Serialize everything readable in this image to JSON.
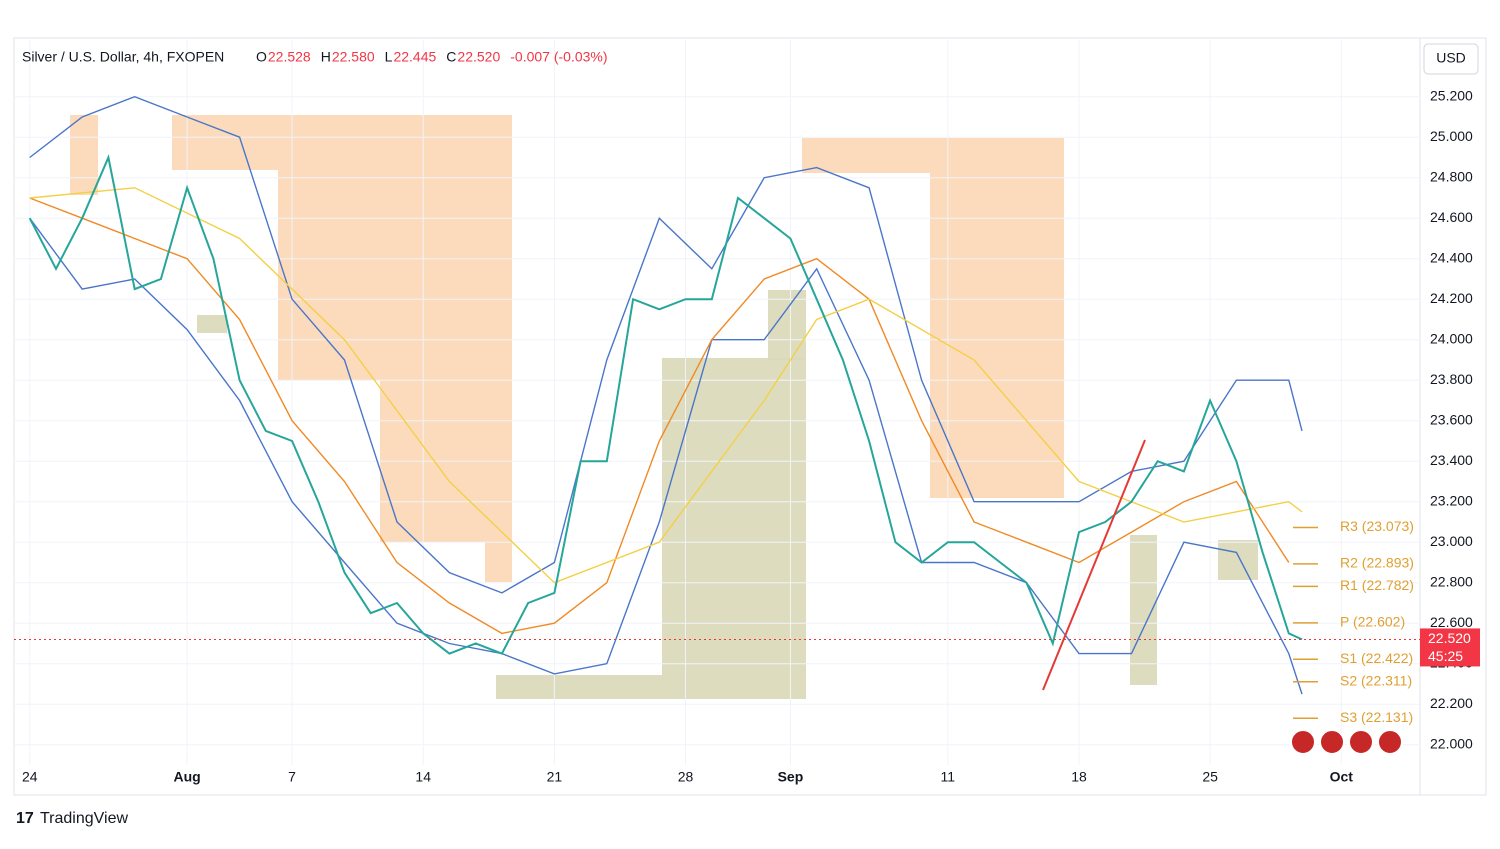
{
  "chart_data": {
    "type": "line",
    "title": "Silver / U.S. Dollar, 4h, FXOPEN",
    "ohlc": [
      {
        "label": "O",
        "value": "22.528"
      },
      {
        "label": "H",
        "value": "22.580"
      },
      {
        "label": "L",
        "value": "22.445"
      },
      {
        "label": "C",
        "value": "22.520"
      }
    ],
    "change": "-0.007 (-0.03%)",
    "currency": "USD",
    "last_price": {
      "value": 22.52,
      "label": "22.520"
    },
    "countdown": "45:25",
    "brand": "TradingView",
    "ylim": [
      21.9,
      25.48
    ],
    "yticks": [
      {
        "value": 22.0,
        "label": "22.000"
      },
      {
        "value": 22.2,
        "label": "22.200"
      },
      {
        "value": 22.4,
        "label": "22.400"
      },
      {
        "value": 22.6,
        "label": "22.600"
      },
      {
        "value": 22.8,
        "label": "22.800"
      },
      {
        "value": 23.0,
        "label": "23.000"
      },
      {
        "value": 23.2,
        "label": "23.200"
      },
      {
        "value": 23.4,
        "label": "23.400"
      },
      {
        "value": 23.6,
        "label": "23.600"
      },
      {
        "value": 23.8,
        "label": "23.800"
      },
      {
        "value": 24.0,
        "label": "24.000"
      },
      {
        "value": 24.2,
        "label": "24.200"
      },
      {
        "value": 24.4,
        "label": "24.400"
      },
      {
        "value": 24.6,
        "label": "24.600"
      },
      {
        "value": 24.8,
        "label": "24.800"
      },
      {
        "value": 25.0,
        "label": "25.000"
      },
      {
        "value": 25.2,
        "label": "25.200"
      }
    ],
    "xlim": [
      -0.6,
      53
    ],
    "xticks": [
      {
        "value": 0,
        "label": "24"
      },
      {
        "value": 6,
        "label": "Aug"
      },
      {
        "value": 10,
        "label": "7"
      },
      {
        "value": 15,
        "label": "14"
      },
      {
        "value": 20,
        "label": "21"
      },
      {
        "value": 25,
        "label": "28"
      },
      {
        "value": 29,
        "label": "Sep"
      },
      {
        "value": 35,
        "label": "11"
      },
      {
        "value": 40,
        "label": "18"
      },
      {
        "value": 45,
        "label": "25"
      },
      {
        "value": 50,
        "label": "Oct"
      }
    ],
    "grid": true,
    "series": [
      {
        "color": "#4a76c9",
        "x": [
          0,
          2,
          4,
          6,
          8,
          10,
          12,
          14,
          16,
          18,
          20,
          22,
          24,
          26,
          28,
          30,
          32,
          34,
          36,
          38,
          40,
          42,
          44,
          46,
          48,
          48.5
        ],
        "values": [
          24.9,
          25.1,
          25.2,
          25.1,
          25.0,
          24.2,
          23.9,
          23.1,
          22.85,
          22.75,
          22.9,
          23.9,
          24.6,
          24.35,
          24.8,
          24.85,
          24.75,
          23.8,
          23.2,
          23.2,
          23.2,
          23.35,
          23.4,
          23.8,
          23.8,
          23.55
        ]
      },
      {
        "color": "#4a76c9",
        "x": [
          0,
          2,
          4,
          6,
          8,
          10,
          12,
          14,
          16,
          18,
          20,
          22,
          24,
          26,
          28,
          30,
          32,
          34,
          36,
          38,
          40,
          42,
          44,
          46,
          48,
          48.5
        ],
        "values": [
          24.6,
          24.25,
          24.3,
          24.05,
          23.7,
          23.2,
          22.9,
          22.6,
          22.5,
          22.45,
          22.35,
          22.4,
          23.1,
          24.0,
          24.0,
          24.35,
          23.8,
          22.9,
          22.9,
          22.8,
          22.45,
          22.45,
          23.0,
          22.95,
          22.45,
          22.25
        ]
      },
      {
        "color": "#f08a24",
        "x": [
          0,
          2,
          4,
          6,
          8,
          10,
          12,
          14,
          16,
          18,
          20,
          22,
          24,
          26,
          28,
          30,
          32,
          34,
          36,
          38,
          40,
          42,
          44,
          46,
          48
        ],
        "values": [
          24.7,
          24.6,
          24.5,
          24.4,
          24.1,
          23.6,
          23.3,
          22.9,
          22.7,
          22.55,
          22.6,
          22.8,
          23.5,
          24.0,
          24.3,
          24.4,
          24.2,
          23.6,
          23.1,
          23.0,
          22.9,
          23.05,
          23.2,
          23.3,
          22.9
        ]
      },
      {
        "color": "#f3d046",
        "x": [
          0,
          4,
          8,
          12,
          16,
          20,
          24,
          28,
          30,
          32,
          36,
          40,
          44,
          48,
          48.5
        ],
        "values": [
          24.7,
          24.75,
          24.5,
          24.0,
          23.3,
          22.8,
          23.0,
          23.7,
          24.1,
          24.2,
          23.9,
          23.3,
          23.1,
          23.2,
          23.15
        ]
      },
      {
        "color": "#26a69a",
        "x": [
          0,
          1,
          2,
          3,
          4,
          5,
          6,
          7,
          8,
          9,
          10,
          11,
          12,
          13,
          14,
          15,
          16,
          17,
          18,
          19,
          20,
          21,
          22,
          23,
          24,
          25,
          26,
          27,
          28,
          29,
          30,
          31,
          32,
          33,
          34,
          35,
          36,
          37,
          38,
          39,
          40,
          41,
          42,
          43,
          44,
          45,
          46,
          47,
          48,
          48.5
        ],
        "values": [
          24.6,
          24.35,
          24.6,
          24.9,
          24.25,
          24.3,
          24.75,
          24.4,
          23.8,
          23.55,
          23.5,
          23.2,
          22.85,
          22.65,
          22.7,
          22.55,
          22.45,
          22.5,
          22.45,
          22.7,
          22.75,
          23.4,
          23.4,
          24.2,
          24.15,
          24.2,
          24.2,
          24.7,
          24.6,
          24.5,
          24.2,
          23.9,
          23.5,
          23.0,
          22.9,
          23.0,
          23.0,
          22.9,
          22.8,
          22.5,
          23.05,
          23.1,
          23.2,
          23.4,
          23.35,
          23.7,
          23.4,
          22.95,
          22.55,
          22.52
        ]
      }
    ],
    "pivots": [
      {
        "value": 23.073,
        "label": "R3 (23.073)"
      },
      {
        "value": 22.893,
        "label": "R2 (22.893)"
      },
      {
        "value": 22.782,
        "label": "R1 (22.782)"
      },
      {
        "value": 22.602,
        "label": "P (22.602)"
      },
      {
        "value": 22.422,
        "label": "S1 (22.422)"
      },
      {
        "value": 22.311,
        "label": "S2 (22.311)"
      },
      {
        "value": 22.131,
        "label": "S3 (22.131)"
      }
    ],
    "pivot_color": "#e0a030"
  }
}
